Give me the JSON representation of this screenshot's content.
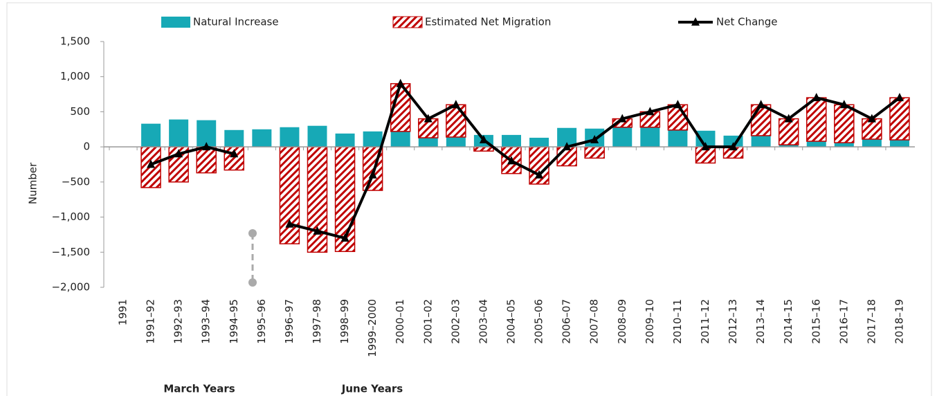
{
  "chart_data": {
    "type": "bar_line",
    "y_label": "Number",
    "annotations": [
      "March Years",
      "June Years"
    ],
    "categories": [
      "1991",
      "1991–92",
      "1992–93",
      "1993–94",
      "1994–95",
      "1995–96",
      "1996–97",
      "1997–98",
      "1998–99",
      "1999–2000",
      "2000–01",
      "2001–02",
      "2002–03",
      "2003–04",
      "2004–05",
      "2005–06",
      "2006–07",
      "2007–08",
      "2008–09",
      "2009–10",
      "2010–11",
      "2011–12",
      "2012–13",
      "2013–14",
      "2014–15",
      "2015–16",
      "2016–17",
      "2017–18",
      "2018–19"
    ],
    "series": [
      {
        "name": "Natural Increase",
        "color": "#17a9b6",
        "kind": "bar",
        "values": [
          null,
          330,
          390,
          380,
          240,
          250,
          280,
          300,
          190,
          220,
          220,
          130,
          140,
          170,
          170,
          130,
          270,
          260,
          280,
          280,
          240,
          230,
          160,
          160,
          30,
          80,
          60,
          110,
          100
        ]
      },
      {
        "name": "Estimated Net Migration",
        "color": "#c00000",
        "kind": "hatched-bar",
        "values": [
          null,
          -580,
          -500,
          -370,
          -330,
          null,
          -1380,
          -1500,
          -1490,
          -620,
          680,
          270,
          460,
          -60,
          -380,
          -530,
          -270,
          -160,
          120,
          220,
          360,
          -230,
          -160,
          440,
          370,
          620,
          540,
          290,
          600
        ]
      },
      {
        "name": "Net Change",
        "color": "#000000",
        "kind": "line",
        "values": [
          null,
          -250,
          -100,
          0,
          -100,
          null,
          -1100,
          -1200,
          -1300,
          -400,
          900,
          400,
          600,
          100,
          -200,
          -400,
          0,
          100,
          400,
          500,
          600,
          0,
          0,
          600,
          400,
          700,
          600,
          400,
          700
        ]
      }
    ],
    "ylim": [
      -2000,
      1500
    ],
    "yticks": [
      {
        "value": -2000,
        "label": "−2,000"
      },
      {
        "value": -1500,
        "label": "−1,500"
      },
      {
        "value": -1000,
        "label": "−1,000"
      },
      {
        "value": -500,
        "label": "−500"
      },
      0,
      500,
      {
        "value": 1000,
        "label": "1,000"
      },
      {
        "value": 1500,
        "label": "1,500"
      }
    ],
    "legend": "top"
  }
}
